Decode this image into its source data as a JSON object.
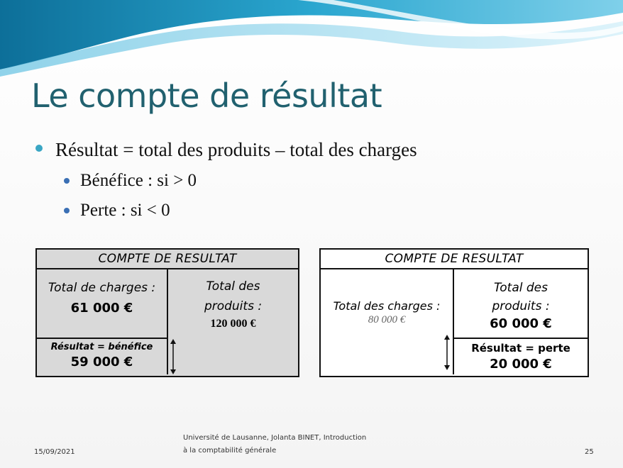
{
  "title": "Le compte de résultat",
  "bullets": {
    "main": "Résultat = total des produits – total des charges",
    "sub": [
      "Bénéfice : si > 0",
      "Perte : si < 0"
    ]
  },
  "table_left": {
    "header": "COMPTE DE RESULTAT",
    "charges_label": "Total de charges :",
    "charges_value": "61 000 €",
    "produits_label_1": "Total des",
    "produits_label_2": "produits :",
    "produits_value": "120 000 €",
    "result_label": "Résultat = bénéfice",
    "result_value": "59 000 €"
  },
  "table_right": {
    "header": "COMPTE DE RESULTAT",
    "charges_label": "Total des charges :",
    "charges_value": "80 000 €",
    "produits_label_1": "Total des",
    "produits_label_2": "produits :",
    "produits_value": "60 000 €",
    "result_label": "Résultat = perte",
    "result_value": "20 000 €"
  },
  "footer": {
    "date": "15/09/2021",
    "source_1": "Université de Lausanne, Jolanta BINET, Introduction",
    "source_2": "à la comptabilité générale",
    "page": "25"
  },
  "colors": {
    "title": "#21616f",
    "shaded_table": "#d9d9d9",
    "wave_dark": "#1f8fb8",
    "wave_light": "#8fd3e8"
  }
}
